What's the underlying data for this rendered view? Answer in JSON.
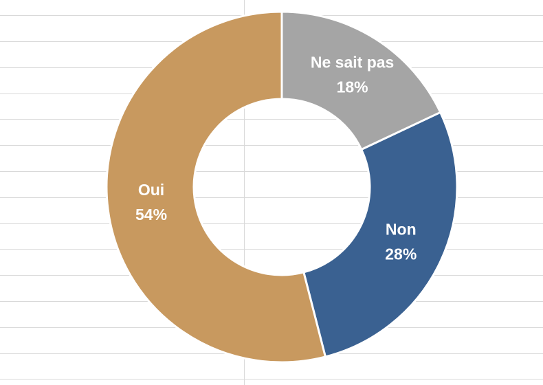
{
  "chart_data": {
    "type": "donut",
    "categories": [
      "Ne sait pas",
      "Non",
      "Oui"
    ],
    "values": [
      18,
      28,
      54
    ],
    "value_labels": [
      "18%",
      "28%",
      "54%"
    ],
    "colors": [
      "#a5a5a5",
      "#3a6191",
      "#c8995f"
    ]
  }
}
